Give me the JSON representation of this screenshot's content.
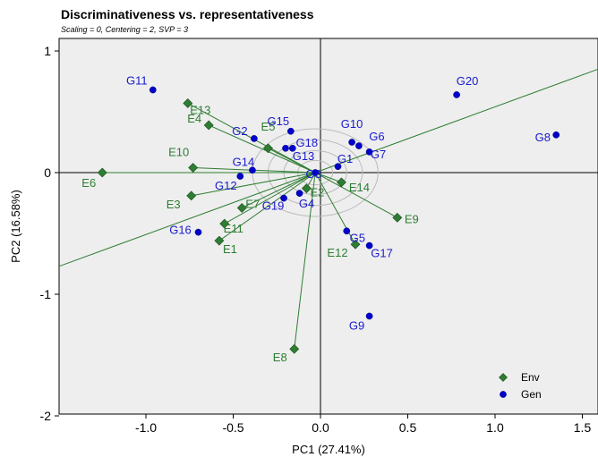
{
  "chart_data": {
    "type": "scatter",
    "title": "Discriminativeness vs. representativeness",
    "subtitle": "Scaling = 0, Centering = 2, SVP = 3",
    "xlabel": "PC1 (27.41%)",
    "ylabel": "PC2 (16.58%)",
    "xlim": [
      -1.5,
      1.6
    ],
    "ylim": [
      -2.0,
      1.1
    ],
    "xticks": [
      -1.0,
      -0.5,
      0.0,
      0.5,
      1.0,
      1.5
    ],
    "xtick_labels": [
      "-1.0",
      "-0.5",
      "0.0",
      "0.5",
      "1.0",
      "1.5"
    ],
    "yticks": [
      -2,
      -1,
      0,
      1
    ],
    "ytick_labels": [
      "-2",
      "-1",
      "0",
      "1"
    ],
    "grid": false,
    "legend_position": "bottom-right",
    "origin": [
      -0.03,
      0.0
    ],
    "aea_slope": 0.525,
    "circles_radii": [
      0.1,
      0.18,
      0.27,
      0.36
    ],
    "colors": {
      "env": "#2e7d32",
      "env_marker": "#2e7d32",
      "gen": "#1a1ad0",
      "gen_marker": "#0000cc",
      "circle": "#bbbbbb"
    },
    "series": [
      {
        "name": "Env",
        "marker": "diamond",
        "points": [
          {
            "label": "E1",
            "x": -0.58,
            "y": -0.56
          },
          {
            "label": "E2",
            "x": -0.08,
            "y": -0.13
          },
          {
            "label": "E3",
            "x": -0.74,
            "y": -0.19
          },
          {
            "label": "E4",
            "x": -0.64,
            "y": 0.39
          },
          {
            "label": "E5",
            "x": -0.3,
            "y": 0.2
          },
          {
            "label": "E6",
            "x": -1.25,
            "y": 0.0
          },
          {
            "label": "E7",
            "x": -0.45,
            "y": -0.29
          },
          {
            "label": "E8",
            "x": -0.15,
            "y": -1.45
          },
          {
            "label": "E9",
            "x": 0.44,
            "y": -0.37
          },
          {
            "label": "E10",
            "x": -0.73,
            "y": 0.04
          },
          {
            "label": "E11",
            "x": -0.55,
            "y": -0.42
          },
          {
            "label": "E12",
            "x": 0.2,
            "y": -0.59
          },
          {
            "label": "E13",
            "x": -0.76,
            "y": 0.57
          },
          {
            "label": "E14",
            "x": 0.12,
            "y": -0.08
          }
        ]
      },
      {
        "name": "Gen",
        "marker": "circle",
        "points": [
          {
            "label": "G1",
            "x": 0.1,
            "y": 0.05
          },
          {
            "label": "G2",
            "x": -0.38,
            "y": 0.28
          },
          {
            "label": "G3",
            "x": -0.03,
            "y": 0.0
          },
          {
            "label": "G4",
            "x": -0.12,
            "y": -0.17
          },
          {
            "label": "G5",
            "x": 0.15,
            "y": -0.48
          },
          {
            "label": "G6",
            "x": 0.22,
            "y": 0.22
          },
          {
            "label": "G7",
            "x": 0.28,
            "y": 0.17
          },
          {
            "label": "G8",
            "x": 1.35,
            "y": 0.31
          },
          {
            "label": "G9",
            "x": 0.28,
            "y": -1.18
          },
          {
            "label": "G10",
            "x": 0.18,
            "y": 0.25
          },
          {
            "label": "G11",
            "x": -0.96,
            "y": 0.68
          },
          {
            "label": "G12",
            "x": -0.46,
            "y": -0.03
          },
          {
            "label": "G13",
            "x": -0.2,
            "y": 0.2
          },
          {
            "label": "G14",
            "x": -0.39,
            "y": 0.02
          },
          {
            "label": "G15",
            "x": -0.17,
            "y": 0.34
          },
          {
            "label": "G16",
            "x": -0.7,
            "y": -0.49
          },
          {
            "label": "G17",
            "x": 0.28,
            "y": -0.6
          },
          {
            "label": "G18",
            "x": -0.16,
            "y": 0.2
          },
          {
            "label": "G19",
            "x": -0.21,
            "y": -0.21
          },
          {
            "label": "G20",
            "x": 0.78,
            "y": 0.64
          }
        ]
      }
    ]
  }
}
